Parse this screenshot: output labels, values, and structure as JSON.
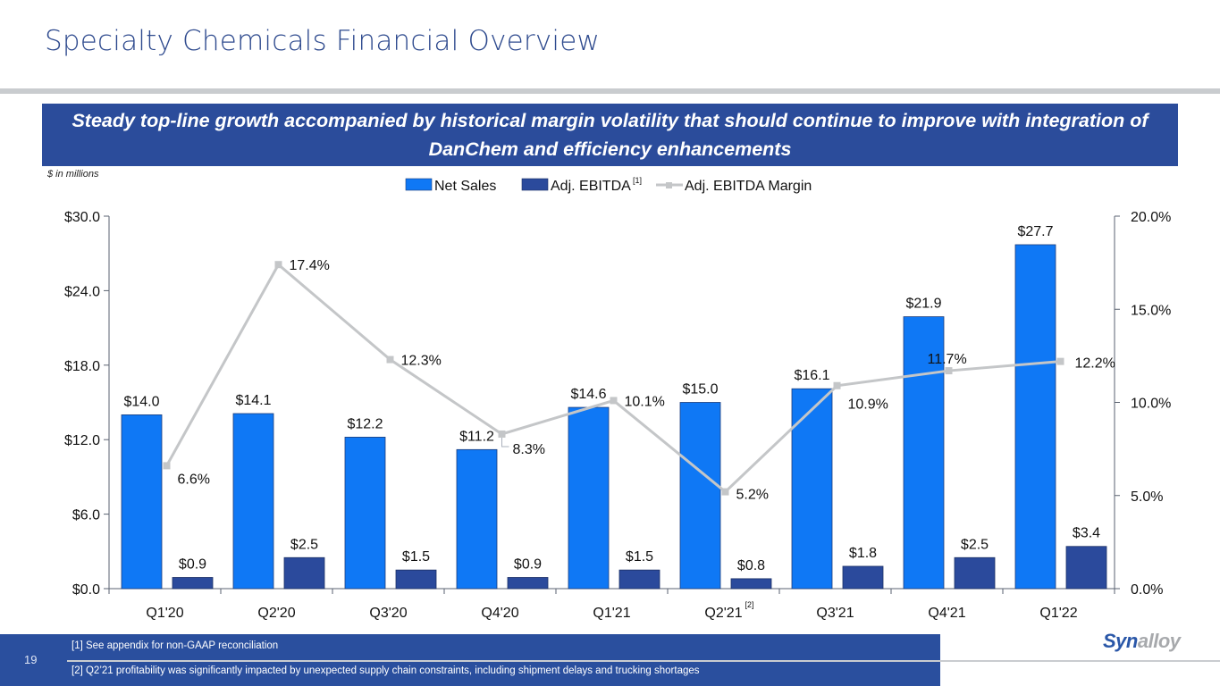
{
  "slide": {
    "title": "Specialty Chemicals Financial Overview",
    "banner": "Steady top-line growth accompanied by historical margin volatility that should continue to improve with integration of DanChem and efficiency enhancements",
    "units_note": "$ in millions",
    "page_number": "19",
    "footnotes": [
      "[1] See appendix for non-GAAP reconciliation",
      "[2] Q2’21 profitability was significantly impacted by unexpected supply chain constraints, including shipment delays and trucking shortages"
    ],
    "logo": {
      "part1": "Syn",
      "part2": "alloy"
    }
  },
  "colors": {
    "net_sales": "#0f78f5",
    "adj_ebitda": "#2b4a9c",
    "margin_line": "#c4c6c8",
    "banner": "#2b4c9b",
    "title": "#2e4a8e"
  },
  "chart_data": {
    "type": "bar",
    "title": "",
    "xlabel": "",
    "ylabel": "",
    "categories": [
      "Q1'20",
      "Q2'20",
      "Q3'20",
      "Q4'20",
      "Q1'21",
      "Q2'21",
      "Q3'21",
      "Q4'21",
      "Q1'22"
    ],
    "category_superscripts": [
      "",
      "",
      "",
      "",
      "",
      "[2]",
      "",
      "",
      ""
    ],
    "series": [
      {
        "name": "Net Sales",
        "type": "bar",
        "axis": "left",
        "values": [
          14.0,
          14.1,
          12.2,
          11.2,
          14.6,
          15.0,
          16.1,
          21.9,
          27.7
        ],
        "labels": [
          "$14.0",
          "$14.1",
          "$12.2",
          "$11.2",
          "$14.6",
          "$15.0",
          "$16.1",
          "$21.9",
          "$27.7"
        ]
      },
      {
        "name": "Adj. EBITDA",
        "superscript": "[1]",
        "type": "bar",
        "axis": "left",
        "values": [
          0.9,
          2.5,
          1.5,
          0.9,
          1.5,
          0.8,
          1.8,
          2.5,
          3.4
        ],
        "labels": [
          "$0.9",
          "$2.5",
          "$1.5",
          "$0.9",
          "$1.5",
          "$0.8",
          "$1.8",
          "$2.5",
          "$3.4"
        ]
      },
      {
        "name": "Adj. EBITDA Margin",
        "type": "line",
        "axis": "right",
        "values": [
          6.6,
          17.4,
          12.3,
          8.3,
          10.1,
          5.2,
          10.9,
          11.7,
          12.2
        ],
        "labels": [
          "6.6%",
          "17.4%",
          "12.3%",
          "8.3%",
          "10.1%",
          "5.2%",
          "10.9%",
          "11.7%",
          "12.2%"
        ]
      }
    ],
    "y_left": {
      "range": [
        0,
        30
      ],
      "ticks": [
        0,
        6,
        12,
        18,
        24,
        30
      ],
      "tick_labels": [
        "$0.0",
        "$6.0",
        "$12.0",
        "$18.0",
        "$24.0",
        "$30.0"
      ]
    },
    "y_right": {
      "range": [
        0,
        20
      ],
      "ticks": [
        0,
        5,
        10,
        15,
        20
      ],
      "tick_labels": [
        "0.0%",
        "5.0%",
        "10.0%",
        "15.0%",
        "20.0%"
      ]
    },
    "grid": false,
    "legend": {
      "position": "top-center",
      "entries": [
        "Net Sales",
        "Adj. EBITDA",
        "Adj. EBITDA Margin"
      ]
    }
  }
}
